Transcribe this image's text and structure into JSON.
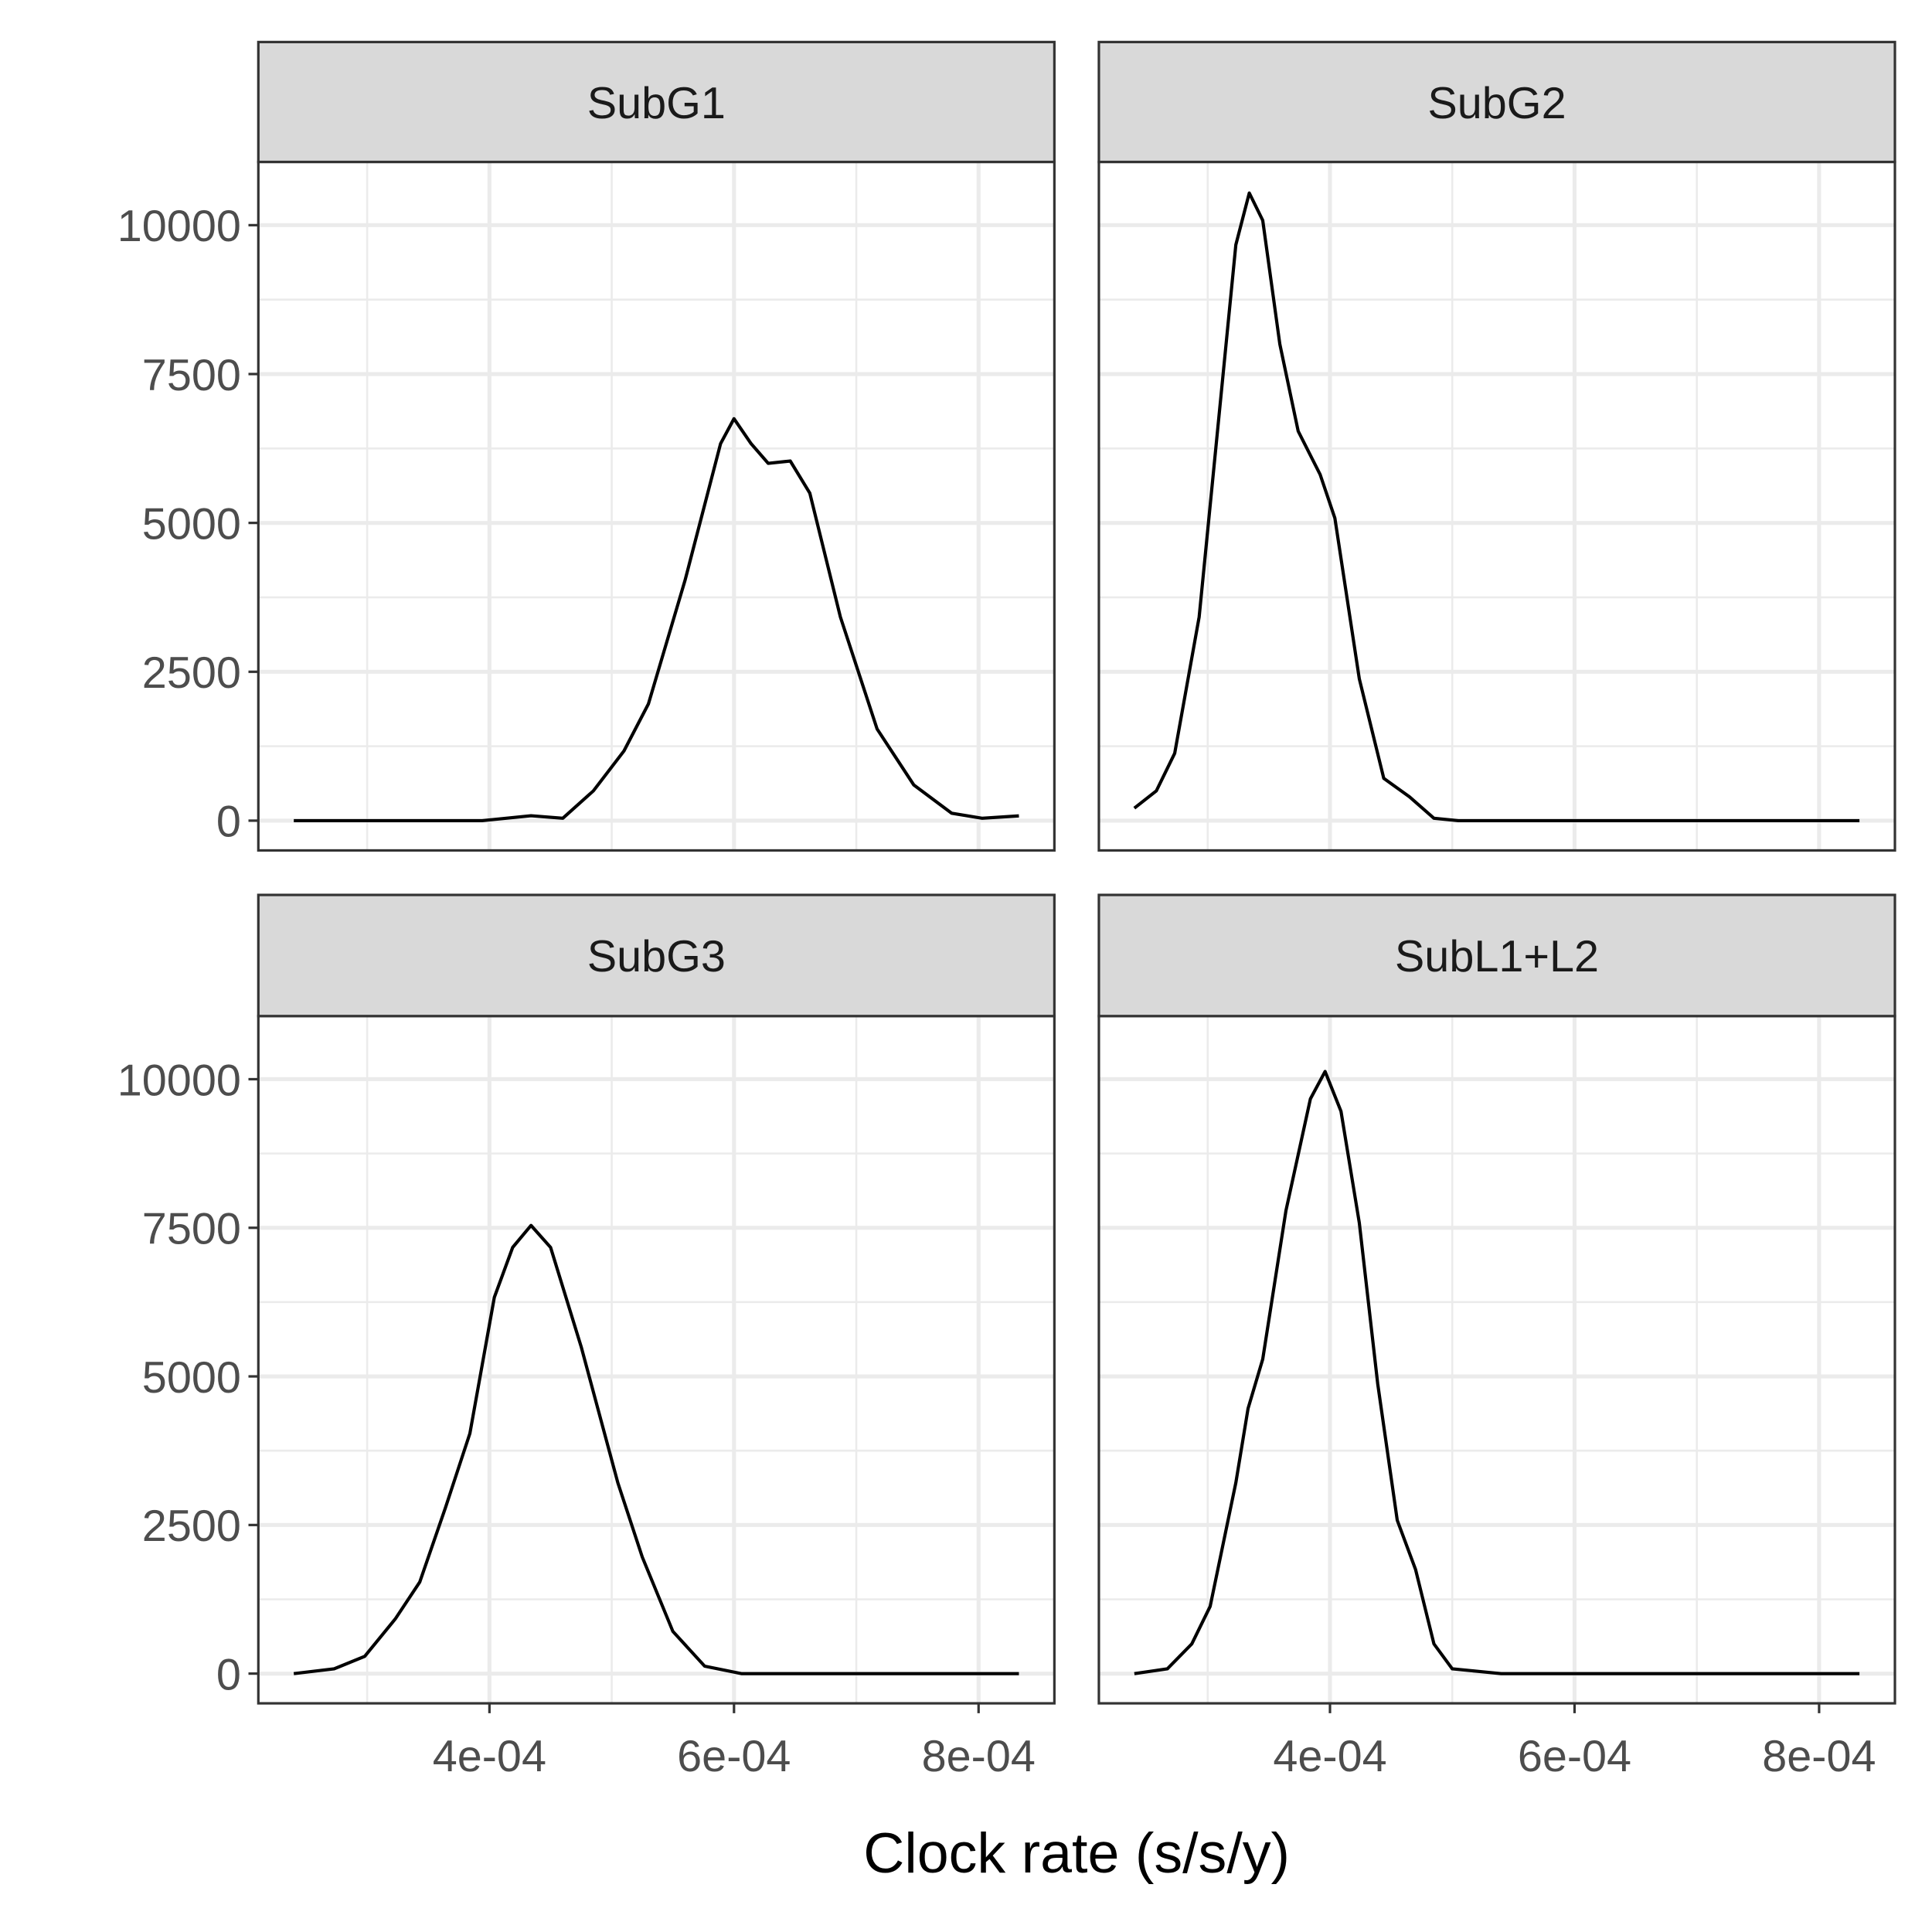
{
  "chart_data": {
    "type": "line",
    "xlabel": "Clock rate (s/s/y)",
    "xlim": [
      0.000211,
      0.000862
    ],
    "ylim": [
      -500,
      11062
    ],
    "xticks": [
      {
        "value": 0.0004,
        "label": "4e-04"
      },
      {
        "value": 0.0006,
        "label": "6e-04"
      },
      {
        "value": 0.0008,
        "label": "8e-04"
      }
    ],
    "yticks": [
      0,
      2500,
      5000,
      7500,
      10000
    ],
    "x_minor_ticks": [
      0.0003,
      0.0005,
      0.0007
    ],
    "y_minor_ticks": [
      1250,
      3750,
      6250,
      8750
    ],
    "grid": true,
    "color": "#000000",
    "facets": [
      {
        "title": "SubG1",
        "x": [
          0.00024,
          0.000394,
          0.000434,
          0.00046,
          0.000485,
          0.00051,
          0.00053,
          0.00056,
          0.000589,
          0.0006,
          0.000614,
          0.000628,
          0.000646,
          0.000662,
          0.000687,
          0.000717,
          0.000747,
          0.000778,
          0.000803,
          0.000833
        ],
        "values": [
          0,
          0,
          83,
          40,
          500,
          1170,
          1960,
          4040,
          6330,
          6750,
          6330,
          6000,
          6040,
          5500,
          3420,
          1540,
          600,
          125,
          40,
          80
        ]
      },
      {
        "title": "SubG2",
        "x": [
          0.00024,
          0.000258,
          0.000273,
          0.000293,
          0.000313,
          0.000323,
          0.000334,
          0.000345,
          0.000359,
          0.000374,
          0.000392,
          0.000404,
          0.000424,
          0.000444,
          0.000465,
          0.000485,
          0.000505,
          0.000833
        ],
        "values": [
          210,
          500,
          1130,
          3420,
          7580,
          9670,
          10540,
          10080,
          8000,
          6540,
          5810,
          5080,
          2380,
          710,
          400,
          40,
          0,
          0
        ]
      },
      {
        "title": "SubG3",
        "x": [
          0.00024,
          0.000273,
          0.000298,
          0.000323,
          0.000343,
          0.000364,
          0.000384,
          0.000404,
          0.000419,
          0.000434,
          0.00045,
          0.000475,
          0.000505,
          0.000525,
          0.00055,
          0.000576,
          0.000606,
          0.000833
        ],
        "values": [
          0,
          80,
          290,
          920,
          1540,
          2790,
          4040,
          6330,
          7170,
          7540,
          7170,
          5500,
          3210,
          1960,
          710,
          125,
          0,
          0
        ]
      },
      {
        "title": "SubL1+L2",
        "x": [
          0.00024,
          0.000267,
          0.000287,
          0.000302,
          0.000323,
          0.000333,
          0.000345,
          0.000364,
          0.000384,
          0.000396,
          0.000409,
          0.000424,
          0.000439,
          0.000455,
          0.00047,
          0.000485,
          0.0005,
          0.00052,
          0.00054,
          0.000833
        ],
        "values": [
          0,
          80,
          500,
          1130,
          3210,
          4460,
          5290,
          7790,
          9670,
          10130,
          9460,
          7580,
          4880,
          2580,
          1750,
          500,
          80,
          40,
          0,
          0
        ]
      }
    ]
  }
}
